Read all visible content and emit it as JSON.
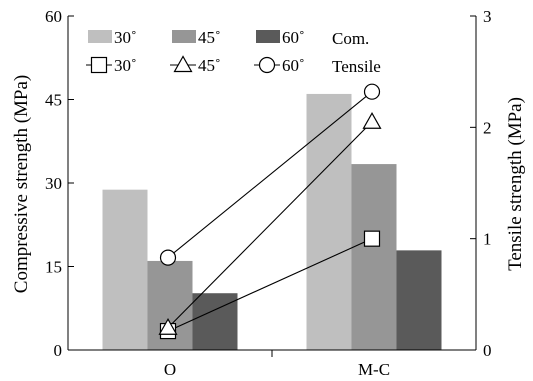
{
  "chart_data": {
    "type": "bar",
    "categories": [
      "O",
      "M-C"
    ],
    "bar_series": [
      {
        "name": "30˚",
        "values": [
          28.8,
          46.0
        ],
        "color": "#bfbfbf"
      },
      {
        "name": "45˚",
        "values": [
          16.0,
          33.4
        ],
        "color": "#969696"
      },
      {
        "name": "60˚",
        "values": [
          10.2,
          17.9
        ],
        "color": "#5a5a5a"
      }
    ],
    "line_series": [
      {
        "name": "30˚",
        "marker": "square",
        "values": [
          0.17,
          1.0
        ]
      },
      {
        "name": "45˚",
        "marker": "triangle",
        "values": [
          0.2,
          2.05
        ]
      },
      {
        "name": "60˚",
        "marker": "circle",
        "values": [
          0.83,
          2.32
        ]
      }
    ],
    "legend_group_labels": {
      "bars": "Com.",
      "lines": "Tensile"
    },
    "ylabel_left": "Compressive strength (MPa)",
    "ylabel_right": "Tensile strength (MPa)",
    "ylim_left": [
      0,
      60
    ],
    "yticks_left": [
      "0",
      "15",
      "30",
      "45",
      "60"
    ],
    "ylim_right": [
      0,
      3
    ],
    "yticks_right": [
      "0",
      "1",
      "2",
      "3"
    ],
    "grid": false,
    "legend_position": "top"
  }
}
